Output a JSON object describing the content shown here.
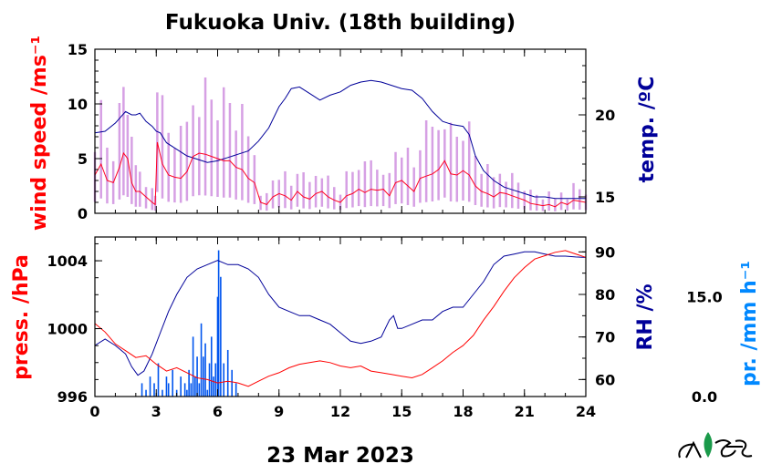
{
  "chart_data": [
    {
      "type": "line",
      "title": "Fukuoka Univ. (18th building)",
      "x_ticks": [
        "0",
        "3",
        "6",
        "9",
        "12",
        "15",
        "18",
        "21",
        "24"
      ],
      "y_left": {
        "label": "wind speed /ms⁻¹",
        "ticks": [
          "0",
          "5",
          "10",
          "15"
        ],
        "range": [
          0,
          15
        ],
        "color": "#ff0000"
      },
      "y_right": {
        "label": "temp. /ºC",
        "ticks": [
          "15",
          "20"
        ],
        "range": [
          14,
          24
        ],
        "color": "#000099"
      },
      "series": [
        {
          "key": "wind",
          "axis": "left",
          "color": "#ff0022",
          "gust_color": "#cc88dd",
          "x": [
            0,
            0.3,
            0.6,
            0.9,
            1.2,
            1.4,
            1.6,
            1.8,
            2.0,
            2.2,
            2.5,
            2.8,
            2.95,
            3.05,
            3.3,
            3.6,
            3.9,
            4.2,
            4.5,
            4.8,
            5.1,
            5.4,
            5.7,
            6.0,
            6.3,
            6.6,
            6.9,
            7.2,
            7.5,
            7.8,
            8.1,
            8.4,
            8.7,
            9.0,
            9.3,
            9.6,
            9.9,
            10.2,
            10.5,
            10.8,
            11.1,
            11.4,
            11.7,
            12.0,
            12.3,
            12.6,
            12.9,
            13.2,
            13.5,
            13.8,
            14.1,
            14.4,
            14.7,
            15.0,
            15.3,
            15.6,
            15.9,
            16.2,
            16.5,
            16.8,
            17.1,
            17.4,
            17.7,
            18.0,
            18.3,
            18.6,
            18.9,
            19.2,
            19.5,
            19.8,
            20.1,
            20.4,
            20.7,
            21.0,
            21.3,
            21.6,
            21.9,
            22.2,
            22.5,
            22.8,
            23.1,
            23.4,
            23.7,
            24.0
          ],
          "values": [
            3.5,
            4.5,
            3.0,
            2.8,
            4.2,
            5.5,
            5.0,
            2.8,
            2.0,
            2.0,
            1.5,
            1.0,
            0.8,
            6.5,
            4.5,
            3.5,
            3.3,
            3.2,
            3.8,
            5.2,
            5.5,
            5.4,
            5.2,
            5.0,
            4.8,
            4.8,
            4.2,
            4.0,
            3.2,
            2.8,
            1.0,
            0.8,
            1.5,
            1.8,
            1.6,
            1.2,
            2.0,
            1.5,
            1.3,
            1.8,
            2.0,
            1.5,
            1.2,
            1.0,
            1.6,
            1.8,
            2.2,
            1.9,
            2.2,
            2.1,
            2.2,
            1.6,
            2.8,
            3.0,
            2.5,
            2.0,
            3.2,
            3.4,
            3.6,
            4.0,
            4.8,
            3.6,
            3.5,
            3.9,
            3.5,
            2.5,
            2.0,
            1.8,
            1.5,
            1.9,
            1.8,
            1.6,
            1.4,
            1.2,
            0.9,
            0.8,
            0.7,
            0.8,
            0.6,
            1.0,
            0.8,
            1.2,
            1.1,
            1.0
          ]
        },
        {
          "key": "temp",
          "axis": "right",
          "color": "#000099",
          "x": [
            0,
            0.5,
            1.0,
            1.5,
            1.8,
            2.0,
            2.2,
            2.5,
            2.8,
            3.0,
            3.2,
            3.5,
            4.0,
            4.5,
            5.0,
            5.5,
            6.0,
            6.5,
            7.0,
            7.5,
            8.0,
            8.5,
            9.0,
            9.3,
            9.6,
            10.0,
            10.5,
            11.0,
            11.5,
            12.0,
            12.5,
            13.0,
            13.5,
            14.0,
            14.5,
            15.0,
            15.5,
            16.0,
            16.5,
            17.0,
            17.5,
            18.0,
            18.3,
            18.6,
            19.0,
            19.5,
            20.0,
            20.5,
            21.0,
            21.5,
            22.0,
            22.5,
            23.0,
            23.5,
            24.0
          ],
          "values": [
            18.9,
            19.0,
            19.5,
            20.2,
            20.0,
            20.0,
            20.1,
            19.6,
            19.3,
            19.0,
            18.9,
            18.3,
            17.9,
            17.5,
            17.3,
            17.1,
            17.2,
            17.4,
            17.6,
            17.8,
            18.4,
            19.2,
            20.5,
            21.0,
            21.6,
            21.7,
            21.3,
            20.9,
            21.2,
            21.4,
            21.8,
            22.0,
            22.1,
            22.0,
            21.8,
            21.6,
            21.5,
            21.0,
            20.2,
            19.6,
            19.4,
            19.3,
            18.8,
            17.5,
            16.6,
            16.0,
            15.6,
            15.4,
            15.2,
            15.0,
            15.0,
            14.9,
            14.9,
            14.9,
            14.9
          ]
        }
      ]
    },
    {
      "type": "line",
      "date": "23 Mar 2023",
      "x_ticks": [
        "0",
        "3",
        "6",
        "9",
        "12",
        "15",
        "18",
        "21",
        "24"
      ],
      "y_left": {
        "label": "press. /hPa",
        "ticks": [
          "996",
          "1000",
          "1004"
        ],
        "range": [
          996,
          1005.4
        ],
        "color": "#ff0000"
      },
      "y_right": {
        "label": "RH /%",
        "ticks": [
          "60",
          "70",
          "80",
          "90"
        ],
        "range": [
          56,
          93.5
        ],
        "color": "#000099"
      },
      "y_far_right": {
        "label": "pr. /mm h⁻¹",
        "ticks": [
          "0.0",
          "15.0"
        ],
        "range": [
          0,
          24
        ],
        "color": "#0088ff"
      },
      "series": [
        {
          "key": "press",
          "axis": "left",
          "color": "#ff0000",
          "x": [
            0,
            0.5,
            1.0,
            1.5,
            2.0,
            2.5,
            3.0,
            3.5,
            4.0,
            4.5,
            5.0,
            5.5,
            6.0,
            6.5,
            7.0,
            7.5,
            8.0,
            8.5,
            9.0,
            9.5,
            10.0,
            10.5,
            11.0,
            11.5,
            12.0,
            12.5,
            13.0,
            13.5,
            14.0,
            14.5,
            15.0,
            15.5,
            16.0,
            16.5,
            17.0,
            17.5,
            18.0,
            18.5,
            19.0,
            19.5,
            20.0,
            20.5,
            21.0,
            21.5,
            22.0,
            22.5,
            23.0,
            23.5,
            24.0
          ],
          "values": [
            1000.3,
            999.8,
            999.1,
            998.7,
            998.3,
            998.4,
            997.9,
            997.5,
            997.7,
            997.4,
            997.1,
            997.0,
            996.8,
            996.9,
            996.8,
            996.6,
            996.9,
            997.2,
            997.4,
            997.7,
            997.9,
            998.0,
            998.1,
            998.0,
            997.8,
            997.7,
            997.8,
            997.5,
            997.4,
            997.3,
            997.2,
            997.1,
            997.3,
            997.7,
            998.1,
            998.6,
            999.0,
            999.6,
            1000.5,
            1001.3,
            1002.2,
            1003.0,
            1003.6,
            1004.1,
            1004.3,
            1004.5,
            1004.6,
            1004.4,
            1004.2
          ]
        },
        {
          "key": "rh",
          "axis": "right",
          "color": "#000099",
          "x": [
            0,
            0.5,
            1.0,
            1.5,
            1.8,
            2.1,
            2.4,
            2.8,
            3.2,
            3.6,
            4.0,
            4.5,
            5.0,
            5.5,
            6.0,
            6.5,
            7.0,
            7.5,
            8.0,
            8.5,
            9.0,
            9.5,
            10.0,
            10.5,
            11.0,
            11.5,
            12.0,
            12.5,
            13.0,
            13.5,
            14.0,
            14.2,
            14.4,
            14.6,
            14.8,
            15.0,
            15.5,
            16.0,
            16.5,
            17.0,
            17.5,
            18.0,
            18.5,
            19.0,
            19.5,
            20.0,
            20.5,
            21.0,
            21.5,
            22.0,
            22.5,
            23.0,
            23.5,
            24.0
          ],
          "values": [
            68,
            69.5,
            68,
            66,
            63,
            61,
            62,
            66,
            71,
            76,
            80,
            84,
            86,
            87,
            88,
            87,
            87,
            86,
            84,
            80,
            77,
            76,
            75,
            75,
            74,
            73,
            71,
            69,
            68.5,
            69,
            70,
            72,
            74,
            75,
            72,
            72,
            73,
            74,
            74,
            76,
            77,
            77,
            80,
            83,
            87,
            89,
            89.5,
            90,
            90,
            89.5,
            89,
            89,
            88.8,
            88.7
          ]
        },
        {
          "key": "precip",
          "axis": "far_right",
          "color": "#0055ee",
          "type": "bar",
          "x": [
            2.3,
            2.5,
            2.7,
            2.9,
            3.1,
            3.3,
            3.5,
            3.6,
            3.8,
            4.0,
            4.2,
            4.4,
            4.5,
            4.6,
            4.7,
            4.8,
            4.9,
            5.0,
            5.1,
            5.2,
            5.3,
            5.4,
            5.5,
            5.6,
            5.7,
            5.8,
            5.9,
            6.0,
            6.05,
            6.15,
            6.3,
            6.5,
            6.7,
            6.9
          ],
          "values": [
            2,
            1,
            3,
            2,
            5,
            1,
            3,
            2,
            4,
            1,
            3,
            2,
            1,
            4,
            2,
            9,
            3,
            6,
            2,
            11,
            6,
            8,
            1,
            5,
            9,
            3,
            5,
            15,
            22,
            18,
            5,
            7,
            4,
            2
          ]
        }
      ]
    }
  ]
}
